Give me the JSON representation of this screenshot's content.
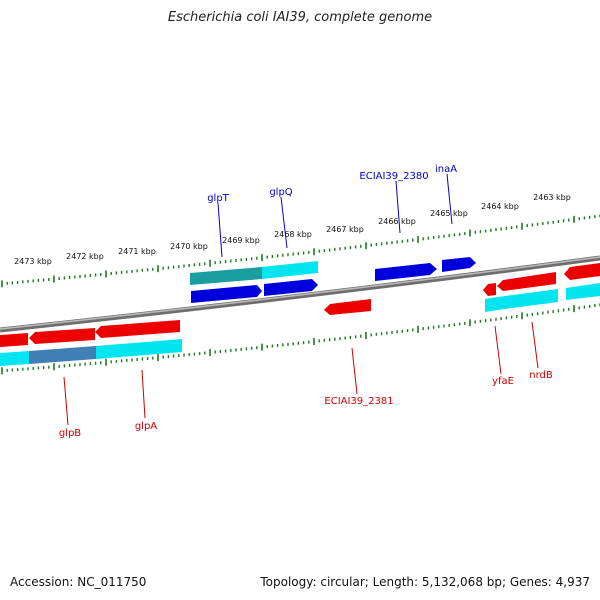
{
  "title": "Escherichia coli IAI39, complete genome",
  "accession": "Accession: NC_011750",
  "summary": "Topology: circular; Length: 5,132,068 bp; Genes: 4,937",
  "colors": {
    "backbone": "#8a8a8a",
    "tick": "#1c7a1c",
    "forward_cds": "#0000dd",
    "forward_gene": "#00e5f0",
    "reverse_cds": "#ee0000",
    "reverse_gene": "#00e5f0",
    "forward_label": "#0000cc",
    "reverse_label": "#cc0000"
  },
  "ticks": [
    {
      "label": "2473 kbp"
    },
    {
      "label": "2472 kbp"
    },
    {
      "label": "2471 kbp"
    },
    {
      "label": "2470 kbp"
    },
    {
      "label": "2469 kbp"
    },
    {
      "label": "2468 kbp"
    },
    {
      "label": "2467 kbp"
    },
    {
      "label": "2466 kbp"
    },
    {
      "label": "2465 kbp"
    },
    {
      "label": "2464 kbp"
    },
    {
      "label": "2463 kbp"
    }
  ],
  "forward_labels": [
    {
      "name": "glpT"
    },
    {
      "name": "glpQ"
    },
    {
      "name": "ECIAI39_2380"
    },
    {
      "name": "inaA"
    }
  ],
  "reverse_labels": [
    {
      "name": "glpB"
    },
    {
      "name": "glpA"
    },
    {
      "name": "ECIAI39_2381"
    },
    {
      "name": "yfaE"
    },
    {
      "name": "nrdB"
    }
  ]
}
